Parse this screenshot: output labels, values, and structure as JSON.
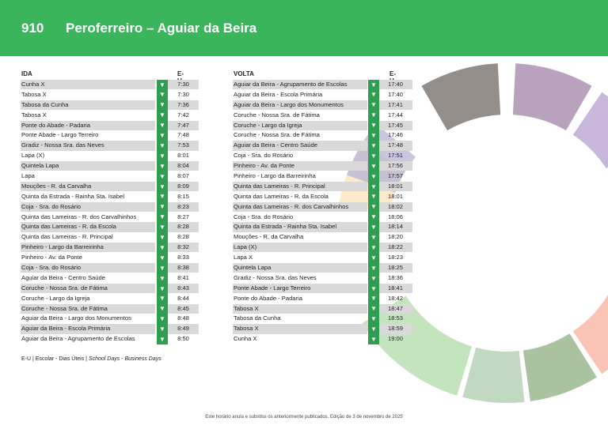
{
  "header": {
    "route_number": "910",
    "route_name": "Peroferreiro – Aguiar da Beira",
    "color": "#3bb55c"
  },
  "ida": {
    "title": "IDA",
    "time_header": "E-U",
    "rows": [
      {
        "stop": "Cunha X",
        "time": "7:30"
      },
      {
        "stop": "Tabosa X",
        "time": "7:30"
      },
      {
        "stop": "Tabosa da Cunha",
        "time": "7:36"
      },
      {
        "stop": "Tabosa X",
        "time": "7:42"
      },
      {
        "stop": "Ponte do Abade - Padaria",
        "time": "7:47"
      },
      {
        "stop": "Ponte Abade - Largo Terreiro",
        "time": "7:48"
      },
      {
        "stop": "Gradiz - Nossa Sra. das Neves",
        "time": "7:53"
      },
      {
        "stop": "Lapa (X)",
        "time": "8:01"
      },
      {
        "stop": "Quintela Lapa",
        "time": "8:04"
      },
      {
        "stop": "Lapa",
        "time": "8:07"
      },
      {
        "stop": "Mouções - R. da Carvalha",
        "time": "8:09"
      },
      {
        "stop": "Quinta da Estrada - Rainha Sta. Isabel",
        "time": "8:15"
      },
      {
        "stop": "Coja - Sra. do Rosário",
        "time": "8:23"
      },
      {
        "stop": "Quinta das Lameiras - R. dos Carvalhinhos",
        "time": "8:27"
      },
      {
        "stop": "Quinta das Lameiras - R. da Escola",
        "time": "8:28"
      },
      {
        "stop": "Quinta das Lameiras - R. Principal",
        "time": "8:28"
      },
      {
        "stop": "Pinheiro - Largo da Barreirinha",
        "time": "8:32"
      },
      {
        "stop": "Pinheiro - Av. da Ponte",
        "time": "8:33"
      },
      {
        "stop": "Coja - Sra. do Rosário",
        "time": "8:38"
      },
      {
        "stop": "Aguiar da Beira - Centro Saúde",
        "time": "8:41"
      },
      {
        "stop": "Coruche - Nossa Sra. de Fátima",
        "time": "8:43"
      },
      {
        "stop": "Coruche - Largo da Igreja",
        "time": "8:44"
      },
      {
        "stop": "Coruche - Nossa Sra. de Fátima",
        "time": "8:45"
      },
      {
        "stop": "Aguiar da Beira - Largo dos Monumentos",
        "time": "8:48"
      },
      {
        "stop": "Aguiar da Beira - Escola Primária",
        "time": "8:49"
      },
      {
        "stop": "Aguiar da Beira - Agrupamento de Escolas",
        "time": "8:50"
      }
    ]
  },
  "volta": {
    "title": "VOLTA",
    "time_header": "E-U",
    "rows": [
      {
        "stop": "Aguiar da Beira - Agrupamento de Escolas",
        "time": "17:40"
      },
      {
        "stop": "Aguiar da Beira - Escola Primária",
        "time": "17:40"
      },
      {
        "stop": "Aguiar da Beira - Largo dos Monumentos",
        "time": "17:41"
      },
      {
        "stop": "Coruche - Nossa Sra. de Fátima",
        "time": "17:44"
      },
      {
        "stop": "Coruche - Largo da Igreja",
        "time": "17:45"
      },
      {
        "stop": "Coruche - Nossa Sra. de Fátima",
        "time": "17:46"
      },
      {
        "stop": "Aguiar da Beira - Centro Saúde",
        "time": "17:48"
      },
      {
        "stop": "Coja - Sra. do Rosário",
        "time": "17:51"
      },
      {
        "stop": "Pinheiro - Av. da Ponte",
        "time": "17:56"
      },
      {
        "stop": "Pinheiro - Largo da Barreirinha",
        "time": "17:57"
      },
      {
        "stop": "Quinta das Lameiras - R. Principal",
        "time": "18:01"
      },
      {
        "stop": "Quinta das Lameiras - R. da Escola",
        "time": "18:01"
      },
      {
        "stop": "Quinta das Lameiras - R. dos Carvalhinhos",
        "time": "18:02"
      },
      {
        "stop": "Coja - Sra. do Rosário",
        "time": "18:06"
      },
      {
        "stop": "Quinta da Estrada - Rainha Sta. Isabel",
        "time": "18:14"
      },
      {
        "stop": "Mouções - R. da Carvalha",
        "time": "18:20"
      },
      {
        "stop": "Lapa (X)",
        "time": "18:22"
      },
      {
        "stop": "Lapa X",
        "time": "18:23"
      },
      {
        "stop": "Quintela Lapa",
        "time": "18:25"
      },
      {
        "stop": "Gradiz - Nossa Sra. das Neves",
        "time": "18:36"
      },
      {
        "stop": "Ponte Abade - Largo Terreiro",
        "time": "18:41"
      },
      {
        "stop": "Ponte do Abade - Padaria",
        "time": "18:42"
      },
      {
        "stop": "Tabosa X",
        "time": "18:47"
      },
      {
        "stop": "Tabosa da Cunha",
        "time": "18:53"
      },
      {
        "stop": "Tabosa X",
        "time": "18:59"
      },
      {
        "stop": "Cunha X",
        "time": "19:00"
      }
    ]
  },
  "legend": {
    "text": "E-U | Escolar - Dias Úteis | ",
    "italic": "School Days - Business Days"
  },
  "footer": "Este horário anula e substitui os anteriormente publicados. Edição de 3 de novembro de 2025",
  "arrow_glyph": "▼",
  "decor_colors": [
    "#948e8a",
    "#b8a2bd",
    "#c8b6dc",
    "#efa896",
    "#f5b8a8",
    "#f9c4b5",
    "#a9c29f",
    "#c1d8c1",
    "#c4e4bd",
    "#fde1b8",
    "#b6b3d6"
  ]
}
